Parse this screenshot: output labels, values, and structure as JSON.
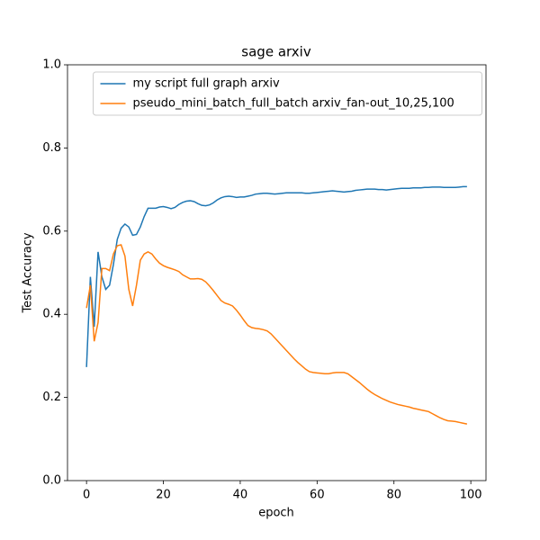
{
  "chart_data": {
    "type": "line",
    "title": "sage arxiv",
    "xlabel": "epoch",
    "ylabel": "Test Accuracy",
    "x": [
      0,
      1,
      2,
      3,
      4,
      5,
      6,
      7,
      8,
      9,
      10,
      11,
      12,
      13,
      14,
      15,
      16,
      17,
      18,
      19,
      20,
      21,
      22,
      23,
      24,
      25,
      26,
      27,
      28,
      29,
      30,
      31,
      32,
      33,
      34,
      35,
      36,
      37,
      38,
      39,
      40,
      41,
      42,
      43,
      44,
      45,
      46,
      47,
      48,
      49,
      50,
      51,
      52,
      53,
      54,
      55,
      56,
      57,
      58,
      59,
      60,
      61,
      62,
      63,
      64,
      65,
      66,
      67,
      68,
      69,
      70,
      71,
      72,
      73,
      74,
      75,
      76,
      77,
      78,
      79,
      80,
      81,
      82,
      83,
      84,
      85,
      86,
      87,
      88,
      89,
      90,
      91,
      92,
      93,
      94,
      95,
      96,
      97,
      98,
      99
    ],
    "series": [
      {
        "name": "my script full graph arxiv",
        "color": "#1f77b4",
        "values": [
          0.273,
          0.49,
          0.37,
          0.55,
          0.49,
          0.46,
          0.47,
          0.52,
          0.58,
          0.607,
          0.617,
          0.61,
          0.59,
          0.592,
          0.61,
          0.635,
          0.655,
          0.655,
          0.655,
          0.658,
          0.659,
          0.657,
          0.654,
          0.657,
          0.664,
          0.669,
          0.672,
          0.673,
          0.671,
          0.666,
          0.662,
          0.661,
          0.663,
          0.668,
          0.675,
          0.68,
          0.683,
          0.684,
          0.683,
          0.681,
          0.682,
          0.682,
          0.684,
          0.686,
          0.689,
          0.69,
          0.691,
          0.691,
          0.69,
          0.689,
          0.69,
          0.691,
          0.692,
          0.692,
          0.692,
          0.692,
          0.692,
          0.691,
          0.691,
          0.692,
          0.693,
          0.694,
          0.695,
          0.696,
          0.697,
          0.696,
          0.695,
          0.694,
          0.695,
          0.696,
          0.698,
          0.699,
          0.7,
          0.701,
          0.701,
          0.701,
          0.7,
          0.7,
          0.699,
          0.7,
          0.701,
          0.702,
          0.703,
          0.703,
          0.703,
          0.704,
          0.704,
          0.704,
          0.705,
          0.705,
          0.706,
          0.706,
          0.706,
          0.705,
          0.705,
          0.705,
          0.705,
          0.706,
          0.707,
          0.707
        ]
      },
      {
        "name": "pseudo_mini_batch_full_batch arxiv_fan-out_10,25,100",
        "color": "#ff7f0e",
        "values": [
          0.415,
          0.47,
          0.335,
          0.38,
          0.51,
          0.51,
          0.505,
          0.545,
          0.565,
          0.567,
          0.54,
          0.46,
          0.42,
          0.47,
          0.53,
          0.545,
          0.55,
          0.545,
          0.533,
          0.523,
          0.517,
          0.513,
          0.51,
          0.507,
          0.503,
          0.495,
          0.49,
          0.485,
          0.485,
          0.486,
          0.484,
          0.478,
          0.468,
          0.457,
          0.445,
          0.433,
          0.427,
          0.424,
          0.42,
          0.41,
          0.398,
          0.385,
          0.373,
          0.368,
          0.366,
          0.365,
          0.363,
          0.36,
          0.353,
          0.343,
          0.333,
          0.323,
          0.313,
          0.303,
          0.293,
          0.284,
          0.276,
          0.268,
          0.262,
          0.26,
          0.259,
          0.258,
          0.257,
          0.257,
          0.259,
          0.26,
          0.26,
          0.26,
          0.257,
          0.25,
          0.243,
          0.236,
          0.228,
          0.22,
          0.213,
          0.207,
          0.202,
          0.197,
          0.193,
          0.189,
          0.186,
          0.183,
          0.181,
          0.179,
          0.177,
          0.174,
          0.172,
          0.17,
          0.168,
          0.166,
          0.161,
          0.156,
          0.151,
          0.147,
          0.144,
          0.143,
          0.142,
          0.14,
          0.138,
          0.136
        ]
      }
    ],
    "xlim": [
      -4.95,
      103.95
    ],
    "xticks": [
      0,
      20,
      40,
      60,
      80,
      100
    ],
    "ylim": [
      0,
      1
    ],
    "yticks": [
      {
        "value": 0,
        "label": "0.0"
      },
      {
        "value": 0.2,
        "label": "0.2"
      },
      {
        "value": 0.4,
        "label": "0.4"
      },
      {
        "value": 0.6,
        "label": "0.6"
      },
      {
        "value": 0.8,
        "label": "0.8"
      },
      {
        "value": 1,
        "label": "1.0"
      }
    ],
    "legend": "upper center",
    "grid": false
  }
}
